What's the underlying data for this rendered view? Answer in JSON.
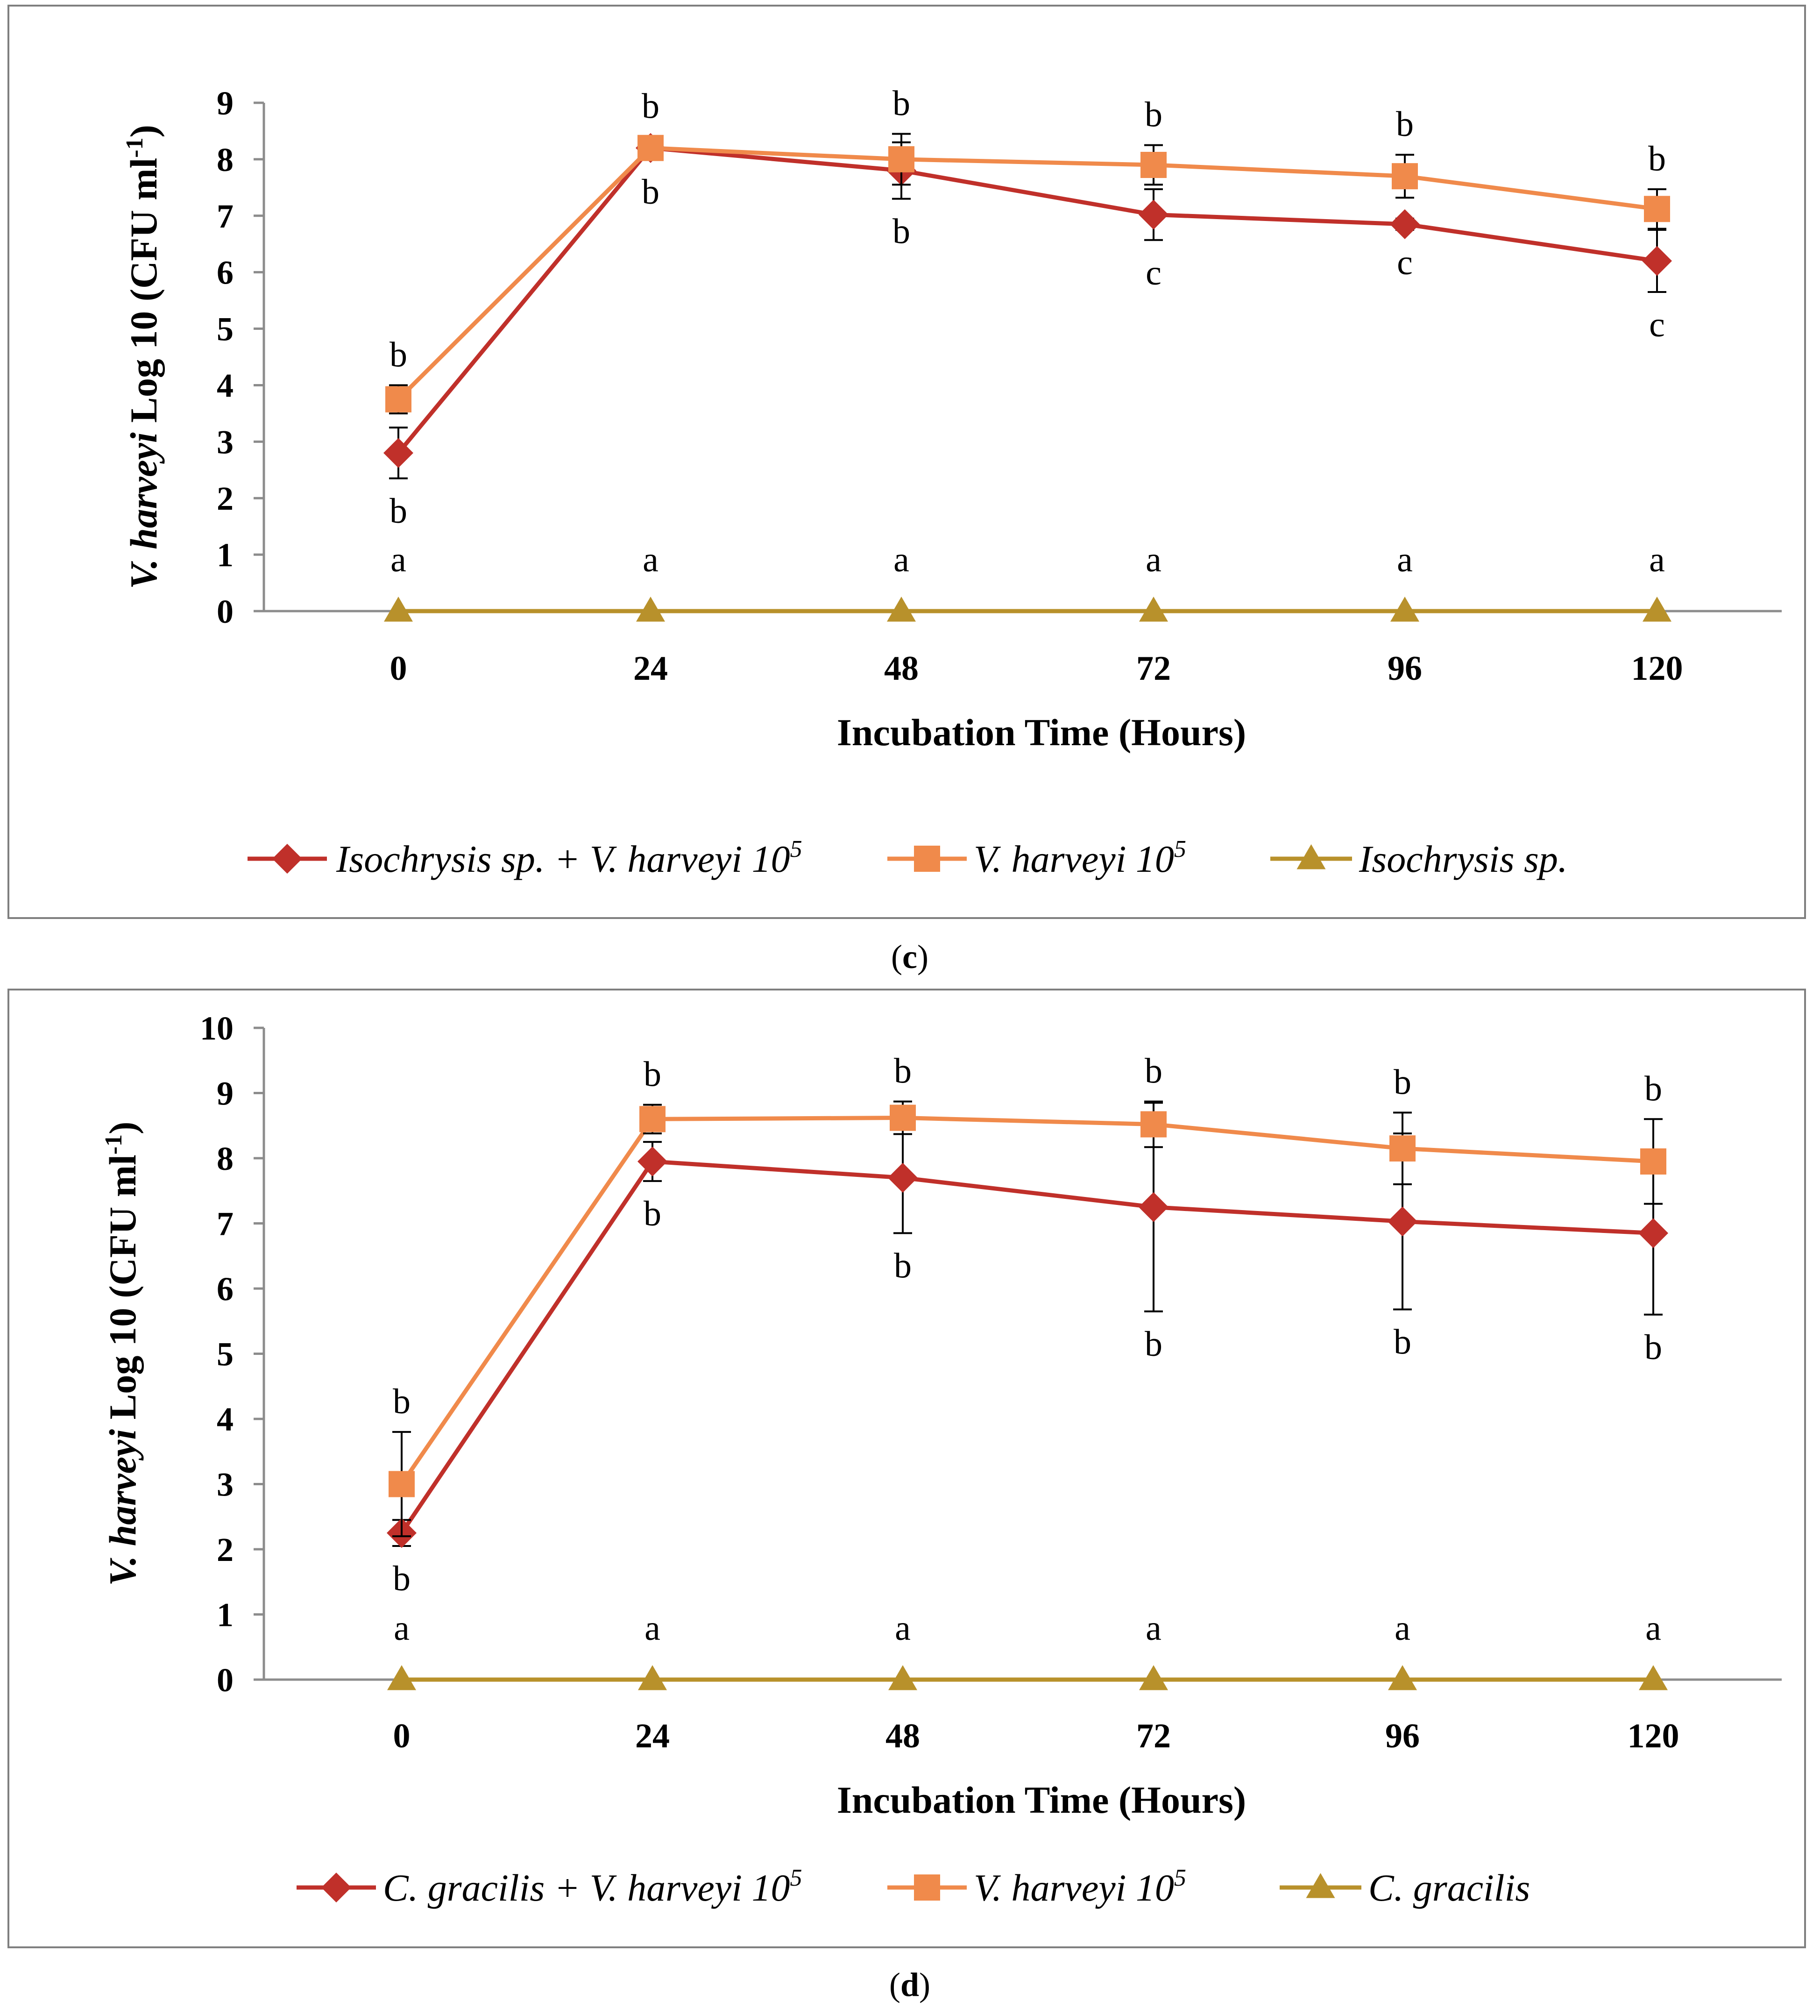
{
  "chart_data": [
    {
      "type": "line",
      "panel": "c",
      "panel_label": "c",
      "ylabel_italic": "V. harveyi",
      "ylabel_rest": " Log 10 (CFU ml",
      "ylabel_sup": "-1",
      "ylabel_close": ")",
      "xlabel": "Incubation Time (Hours)",
      "ylim": [
        0,
        9
      ],
      "yticks": [
        0,
        1,
        2,
        3,
        4,
        5,
        6,
        7,
        8,
        9
      ],
      "categories": [
        "0",
        "24",
        "48",
        "72",
        "96",
        "120"
      ],
      "series": [
        {
          "name": "Isochrysis sp. + V. harveyi 10",
          "name_sup": "5",
          "color": "#c0302a",
          "marker": "diamond",
          "values": [
            2.8,
            8.2,
            7.8,
            7.02,
            6.85,
            6.2
          ],
          "errors": [
            0.45,
            0.2,
            0.5,
            0.45,
            0.1,
            0.55
          ],
          "letters": [
            "b",
            "b",
            "b",
            "c",
            "c",
            "c"
          ],
          "letter_pos": "below"
        },
        {
          "name": "V. harveyi 10",
          "name_sup": "5",
          "color": "#f08a4b",
          "marker": "square",
          "values": [
            3.75,
            8.2,
            8.0,
            7.9,
            7.7,
            7.12
          ],
          "errors": [
            0.25,
            0.2,
            0.45,
            0.35,
            0.38,
            0.35
          ],
          "letters": [
            "b",
            "b",
            "b",
            "b",
            "b",
            "b"
          ],
          "letter_pos": "above"
        },
        {
          "name": "Isochrysis sp.",
          "name_sup": "",
          "color": "#b8912b",
          "marker": "triangle",
          "values": [
            0,
            0,
            0,
            0,
            0,
            0
          ],
          "errors": [
            0,
            0,
            0,
            0,
            0,
            0
          ],
          "letters": [
            "a",
            "a",
            "a",
            "a",
            "a",
            "a"
          ],
          "letter_pos": "above"
        }
      ]
    },
    {
      "type": "line",
      "panel": "d",
      "panel_label": "d",
      "ylabel_italic": "V. harveyi",
      "ylabel_rest": " Log 10 (CFU ml",
      "ylabel_sup": "-1",
      "ylabel_close": ")",
      "xlabel": "Incubation Time (Hours)",
      "ylim": [
        0,
        10
      ],
      "yticks": [
        0,
        1,
        2,
        3,
        4,
        5,
        6,
        7,
        8,
        9,
        10
      ],
      "categories": [
        "0",
        "24",
        "48",
        "72",
        "96",
        "120"
      ],
      "series": [
        {
          "name": "C. gracilis + V. harveyi 10",
          "name_sup": "5",
          "color": "#c0302a",
          "marker": "diamond",
          "values": [
            2.25,
            7.95,
            7.7,
            7.25,
            7.03,
            6.85
          ],
          "errors": [
            0.2,
            0.3,
            0.85,
            1.6,
            1.35,
            1.25
          ],
          "letters": [
            "b",
            "b",
            "b",
            "b",
            "b",
            "b"
          ],
          "letter_pos": "below"
        },
        {
          "name": "V. harveyi 10",
          "name_sup": "5",
          "color": "#f08a4b",
          "marker": "square",
          "values": [
            3.0,
            8.6,
            8.62,
            8.52,
            8.15,
            7.95
          ],
          "errors": [
            0.8,
            0.22,
            0.25,
            0.35,
            0.55,
            0.65
          ],
          "letters": [
            "b",
            "b",
            "b",
            "b",
            "b",
            "b"
          ],
          "letter_pos": "above"
        },
        {
          "name": "C. gracilis",
          "name_sup": "",
          "color": "#b8912b",
          "marker": "triangle",
          "values": [
            0,
            0,
            0,
            0,
            0,
            0
          ],
          "errors": [
            0,
            0,
            0,
            0,
            0,
            0
          ],
          "letters": [
            "a",
            "a",
            "a",
            "a",
            "a",
            "a"
          ],
          "letter_pos": "above"
        }
      ]
    }
  ]
}
